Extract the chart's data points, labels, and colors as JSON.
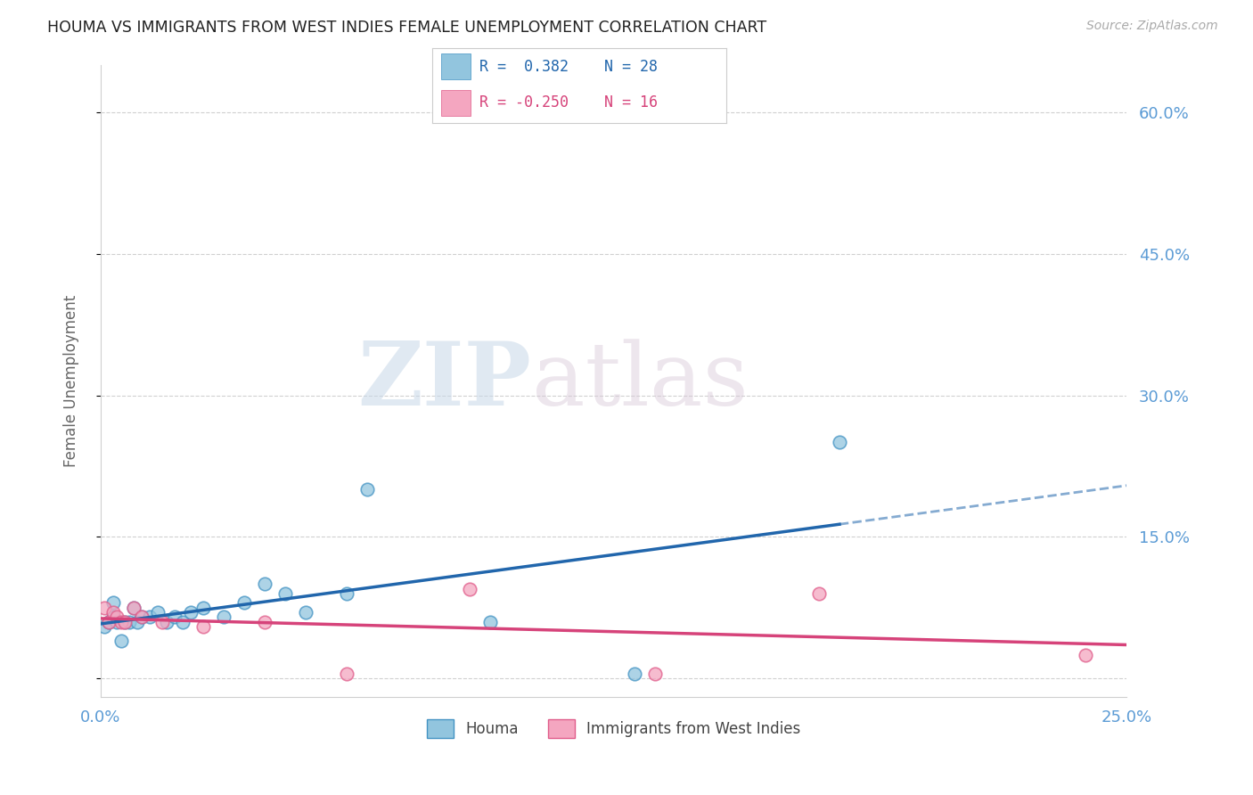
{
  "title": "HOUMA VS IMMIGRANTS FROM WEST INDIES FEMALE UNEMPLOYMENT CORRELATION CHART",
  "source": "Source: ZipAtlas.com",
  "ylabel": "Female Unemployment",
  "xlim": [
    0.0,
    0.25
  ],
  "ylim": [
    -0.02,
    0.65
  ],
  "xticks": [
    0.0,
    0.05,
    0.1,
    0.15,
    0.2,
    0.25
  ],
  "yticks": [
    0.0,
    0.15,
    0.3,
    0.45,
    0.6
  ],
  "xtick_labels": [
    "0.0%",
    "",
    "",
    "",
    "",
    "25.0%"
  ],
  "right_ytick_labels": [
    "",
    "15.0%",
    "30.0%",
    "45.0%",
    "60.0%"
  ],
  "houma_R": "0.382",
  "houma_N": "28",
  "wi_R": "-0.250",
  "wi_N": "16",
  "houma_color": "#92c5de",
  "houma_edge_color": "#4393c3",
  "wi_color": "#f4a6c0",
  "wi_edge_color": "#e05c8a",
  "trend_houma_color": "#2166ac",
  "trend_wi_color": "#d6437a",
  "background_color": "#ffffff",
  "watermark_zip": "ZIP",
  "watermark_atlas": "atlas",
  "grid_color": "#d0d0d0",
  "tick_color": "#5b9bd5",
  "houma_x": [
    0.001,
    0.002,
    0.003,
    0.003,
    0.004,
    0.005,
    0.006,
    0.007,
    0.008,
    0.009,
    0.01,
    0.012,
    0.014,
    0.016,
    0.018,
    0.02,
    0.022,
    0.025,
    0.03,
    0.035,
    0.04,
    0.045,
    0.05,
    0.06,
    0.065,
    0.095,
    0.13,
    0.18
  ],
  "houma_y": [
    0.055,
    0.06,
    0.065,
    0.08,
    0.06,
    0.04,
    0.06,
    0.06,
    0.075,
    0.06,
    0.065,
    0.065,
    0.07,
    0.06,
    0.065,
    0.06,
    0.07,
    0.075,
    0.065,
    0.08,
    0.1,
    0.09,
    0.07,
    0.09,
    0.2,
    0.06,
    0.005,
    0.25
  ],
  "wi_x": [
    0.001,
    0.002,
    0.003,
    0.004,
    0.005,
    0.006,
    0.008,
    0.01,
    0.015,
    0.025,
    0.04,
    0.06,
    0.09,
    0.135,
    0.175,
    0.24
  ],
  "wi_y": [
    0.075,
    0.06,
    0.07,
    0.065,
    0.06,
    0.06,
    0.075,
    0.065,
    0.06,
    0.055,
    0.06,
    0.005,
    0.095,
    0.005,
    0.09,
    0.025
  ]
}
